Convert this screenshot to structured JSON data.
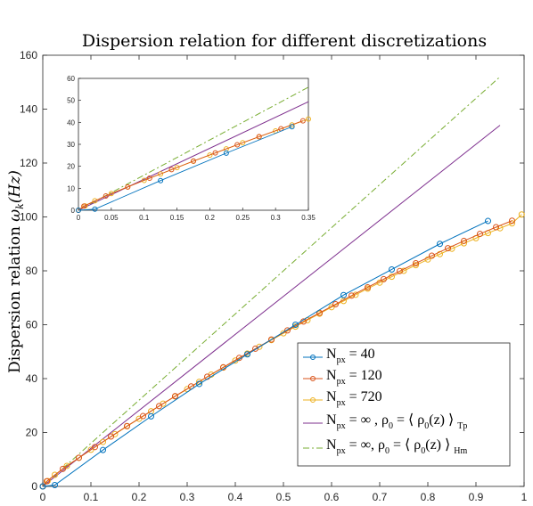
{
  "chart_data": {
    "type": "line",
    "title": "Dispersion relation for different discretizations",
    "ylabel": "Dispersion relation ω_k(Hz)",
    "ylabel_main": "Dispersion relation ",
    "ylabel_sym": "ω",
    "ylabel_sub": "k",
    "ylabel_unit": "(Hz)",
    "xlabel": "",
    "xlim": [
      0,
      1
    ],
    "ylim": [
      0,
      160
    ],
    "xticks": [
      "0",
      "0.1",
      "0.2",
      "0.3",
      "0.4",
      "0.5",
      "0.6",
      "0.7",
      "0.8",
      "0.9",
      "1"
    ],
    "yticks": [
      "0",
      "20",
      "40",
      "60",
      "80",
      "100",
      "120",
      "140",
      "160"
    ],
    "grid": false,
    "legend_position": "bottom-right",
    "series": [
      {
        "name": "N px = 40",
        "legend": {
          "base": "N",
          "sub": "px",
          "rest": " = 40"
        },
        "color": "#0072BD",
        "style": "line-marker",
        "x": [
          0,
          0.025,
          0.125,
          0.225,
          0.325,
          0.425,
          0.525,
          0.625,
          0.725,
          0.825,
          0.925
        ],
        "y": [
          0,
          0.5,
          13.5,
          26,
          38,
          49,
          60,
          71,
          80.5,
          90,
          98.5
        ]
      },
      {
        "name": "N px = 120",
        "legend": {
          "base": "N",
          "sub": "px",
          "rest": " = 120"
        },
        "color": "#D95319",
        "style": "line-marker",
        "x": [
          0,
          0.0083,
          0.0417,
          0.075,
          0.1083,
          0.1417,
          0.175,
          0.2083,
          0.2417,
          0.275,
          0.3083,
          0.3417,
          0.375,
          0.4083,
          0.4417,
          0.475,
          0.5083,
          0.5417,
          0.575,
          0.6083,
          0.6417,
          0.675,
          0.7083,
          0.7417,
          0.775,
          0.8083,
          0.8417,
          0.875,
          0.9083,
          0.9417,
          0.975
        ],
        "y": [
          0,
          1.9,
          6.5,
          10.6,
          14.6,
          18.5,
          22.4,
          26.1,
          29.8,
          33.5,
          37.1,
          40.7,
          44.2,
          47.7,
          51.1,
          54.5,
          57.9,
          61.2,
          64.4,
          67.6,
          70.8,
          73.9,
          76.9,
          79.9,
          82.8,
          85.6,
          88.4,
          91.1,
          93.7,
          96.2,
          98.6
        ]
      },
      {
        "name": "N px = 720",
        "legend": {
          "base": "N",
          "sub": "px",
          "rest": " = 720"
        },
        "color": "#EDB120",
        "style": "line-marker",
        "x": [
          0,
          0.01,
          0.025,
          0.05,
          0.075,
          0.1,
          0.125,
          0.15,
          0.175,
          0.2,
          0.225,
          0.25,
          0.275,
          0.3,
          0.325,
          0.35,
          0.375,
          0.4,
          0.425,
          0.45,
          0.475,
          0.5,
          0.525,
          0.55,
          0.575,
          0.6,
          0.625,
          0.65,
          0.675,
          0.7,
          0.725,
          0.75,
          0.775,
          0.8,
          0.825,
          0.85,
          0.875,
          0.9,
          0.925,
          0.95,
          0.975,
          0.995
        ],
        "y": [
          0,
          2.0,
          4.3,
          7.6,
          10.6,
          13.6,
          16.5,
          19.4,
          22.3,
          25.1,
          27.9,
          30.7,
          33.4,
          36.1,
          38.8,
          41.5,
          44.1,
          46.7,
          49.3,
          51.8,
          54.3,
          56.8,
          59.3,
          61.7,
          64.1,
          66.5,
          68.8,
          71.1,
          73.4,
          75.6,
          77.8,
          80.0,
          82.1,
          84.2,
          86.2,
          88.2,
          90.2,
          92.1,
          94.0,
          95.8,
          97.6,
          100.9
        ]
      },
      {
        "name": "N px = ∞ , ρ0 = ⟨ ρ0(z) ⟩ Tp",
        "legend": {
          "base": "N",
          "sub": "px",
          "rest": " = ∞ , ρ",
          "sub2": "0",
          "rest2": " = ⟨ ρ",
          "sub3": "0",
          "rest3": "(z) ⟩ ",
          "sub4": "Tp"
        },
        "color": "#7E2F8E",
        "style": "solid",
        "x": [
          0,
          0.95
        ],
        "y": [
          0,
          134
        ]
      },
      {
        "name": "N px = ∞, ρ0 = ⟨ ρ0(z) ⟩ Hm",
        "legend": {
          "base": "N",
          "sub": "px",
          "rest": " = ∞, ρ",
          "sub2": "0",
          "rest2": " = ⟨ ρ",
          "sub3": "0",
          "rest3": "(z) ⟩ ",
          "sub4": "Hm"
        },
        "color": "#77AC30",
        "style": "dashdot",
        "x": [
          0,
          0.95
        ],
        "y": [
          0,
          152
        ]
      }
    ],
    "inset": {
      "xlim": [
        0,
        0.35
      ],
      "ylim": [
        0,
        60
      ],
      "xticks": [
        "0",
        "0.05",
        "0.1",
        "0.15",
        "0.2",
        "0.25",
        "0.3",
        "0.35"
      ],
      "yticks": [
        "0",
        "10",
        "20",
        "30",
        "40",
        "50",
        "60"
      ]
    }
  }
}
